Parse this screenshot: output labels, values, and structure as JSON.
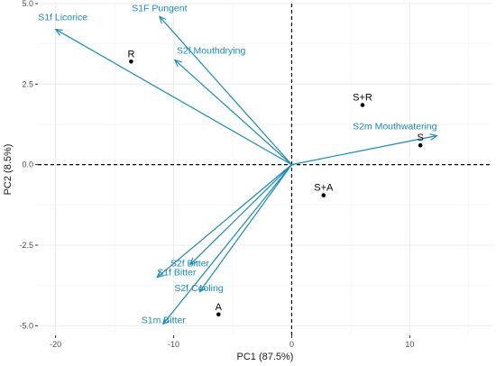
{
  "chart_data": {
    "type": "scatter",
    "subtype": "pca-biplot",
    "xlabel": "PC1 (87.5%)",
    "ylabel": "PC2 (8.5%)",
    "xlim": [
      -21.5,
      17
    ],
    "ylim": [
      -5.3,
      5.0
    ],
    "xticks": [
      -20,
      -10,
      0,
      10
    ],
    "yticks": [
      -5.0,
      -2.5,
      0.0,
      2.5,
      5.0
    ],
    "ytick_labels": [
      "-5.0",
      "-2.5",
      "0.0",
      "2.5",
      "5.0"
    ],
    "grid": true,
    "reference_lines": {
      "x": 0,
      "y": 0,
      "style": "dashed"
    },
    "colors": {
      "vector": "#1a8ab8",
      "point": "#000000",
      "grid": "#ebebeb"
    },
    "points": [
      {
        "label": "R",
        "x": -13.6,
        "y": 3.2
      },
      {
        "label": "S+R",
        "x": 6.0,
        "y": 1.85
      },
      {
        "label": "S",
        "x": 10.9,
        "y": 0.6
      },
      {
        "label": "S+A",
        "x": 2.7,
        "y": -0.95
      },
      {
        "label": "A",
        "x": -6.2,
        "y": -4.65
      }
    ],
    "vectors": [
      {
        "label": "S1F Pungent",
        "x": -11.2,
        "y": 4.6
      },
      {
        "label": "S1f Licorice",
        "x": -20.0,
        "y": 4.2
      },
      {
        "label": "S2f Mouthdrying",
        "x": -9.9,
        "y": 3.25
      },
      {
        "label": "S2m Mouthwatering",
        "x": 12.3,
        "y": 0.9
      },
      {
        "label": "S2f Bitter",
        "x": -8.6,
        "y": -3.1
      },
      {
        "label": "S1f Bitter",
        "x": -11.4,
        "y": -3.5
      },
      {
        "label": "S2f Cooling",
        "x": -7.8,
        "y": -3.95
      },
      {
        "label": "S1m Bitter",
        "x": -10.9,
        "y": -4.95
      }
    ]
  }
}
